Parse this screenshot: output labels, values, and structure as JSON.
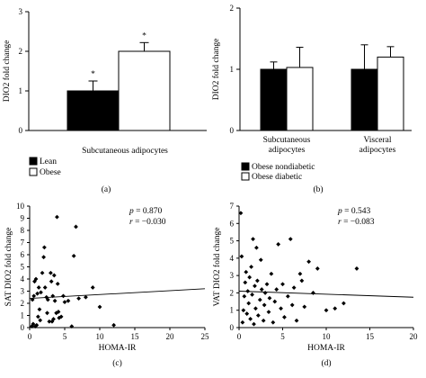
{
  "chart_data": [
    {
      "panel": "(a)",
      "type": "bar",
      "ylabel": "DIO2 fold change",
      "xlabel": "Subcutaneous adipocytes",
      "ylim": [
        0,
        3
      ],
      "yticks": [
        0,
        1,
        2,
        3
      ],
      "series": [
        {
          "name": "Lean",
          "color": "#000000",
          "value": 1.0,
          "error": 0.25,
          "sig": "*"
        },
        {
          "name": "Obese",
          "color": "#ffffff",
          "value": 2.0,
          "error": 0.22,
          "sig": "*"
        }
      ],
      "legend_placement": "bottom-left"
    },
    {
      "panel": "(b)",
      "type": "bar",
      "ylabel": "DIO2 fold change",
      "ylim": [
        0,
        2
      ],
      "yticks": [
        0,
        1,
        2
      ],
      "categories": [
        {
          "line1": "Subcutaneous",
          "line2": "adipocytes"
        },
        {
          "line1": "Visceral",
          "line2": "adipocytes"
        }
      ],
      "series": [
        {
          "name": "Obese nondiabetic",
          "color": "#000000",
          "values": [
            1.0,
            1.0
          ],
          "errors": [
            0.12,
            0.4
          ]
        },
        {
          "name": "Obese diabetic",
          "color": "#ffffff",
          "values": [
            1.03,
            1.2
          ],
          "errors": [
            0.33,
            0.17
          ]
        }
      ],
      "legend_placement": "bottom-left"
    },
    {
      "panel": "(c)",
      "type": "scatter",
      "xlabel": "HOMA-IR",
      "ylabel": "SAT DIO2 fold change",
      "xlim": [
        0,
        25
      ],
      "ylim": [
        0,
        10
      ],
      "xticks": [
        0,
        5,
        10,
        15,
        20,
        25
      ],
      "yticks": [
        0,
        1,
        2,
        3,
        4,
        5,
        6,
        7,
        8,
        9,
        10
      ],
      "p_label": "p",
      "p_value": "= 0.870",
      "r_label": "r",
      "r_value": "= −0.030",
      "trend": {
        "x": [
          0,
          25
        ],
        "y": [
          2.4,
          3.2
        ]
      },
      "points": [
        [
          0.3,
          0.1
        ],
        [
          0.5,
          0.3
        ],
        [
          0.8,
          0.1
        ],
        [
          1.0,
          0.2
        ],
        [
          1.2,
          0.9
        ],
        [
          1.5,
          0.6
        ],
        [
          0.4,
          2.3
        ],
        [
          0.6,
          2.6
        ],
        [
          0.7,
          3.8
        ],
        [
          0.9,
          4.0
        ],
        [
          1.1,
          2.8
        ],
        [
          1.3,
          3.3
        ],
        [
          1.4,
          1.5
        ],
        [
          1.6,
          2.9
        ],
        [
          1.8,
          4.5
        ],
        [
          2.0,
          5.8
        ],
        [
          2.1,
          6.6
        ],
        [
          2.2,
          3.3
        ],
        [
          2.4,
          2.5
        ],
        [
          2.5,
          1.2
        ],
        [
          2.6,
          2.3
        ],
        [
          2.8,
          0.5
        ],
        [
          3.0,
          4.5
        ],
        [
          3.1,
          3.8
        ],
        [
          3.2,
          0.5
        ],
        [
          3.3,
          2.6
        ],
        [
          3.4,
          0.7
        ],
        [
          3.5,
          4.3
        ],
        [
          3.6,
          2.2
        ],
        [
          3.8,
          1.2
        ],
        [
          3.9,
          9.1
        ],
        [
          4.0,
          3.6
        ],
        [
          4.1,
          1.3
        ],
        [
          4.2,
          0.8
        ],
        [
          4.5,
          0.9
        ],
        [
          4.8,
          2.6
        ],
        [
          5.0,
          2.1
        ],
        [
          5.5,
          2.2
        ],
        [
          6.0,
          0.1
        ],
        [
          6.3,
          5.9
        ],
        [
          6.6,
          8.3
        ],
        [
          7.0,
          2.4
        ],
        [
          8.0,
          2.5
        ],
        [
          9.0,
          3.3
        ],
        [
          10.0,
          1.7
        ],
        [
          12.0,
          0.2
        ]
      ]
    },
    {
      "panel": "(d)",
      "type": "scatter",
      "xlabel": "HOMA-IR",
      "ylabel": "VAT DIO2 fold change",
      "xlim": [
        0,
        20
      ],
      "ylim": [
        0,
        7
      ],
      "xticks": [
        0,
        5,
        10,
        15,
        20
      ],
      "yticks": [
        0,
        1,
        2,
        3,
        4,
        5,
        6,
        7
      ],
      "p_label": "p",
      "p_value": "= 0.543",
      "r_label": "r",
      "r_value": "= −0.083",
      "trend": {
        "x": [
          0,
          20
        ],
        "y": [
          2.1,
          1.75
        ]
      },
      "points": [
        [
          0.2,
          6.6
        ],
        [
          0.3,
          4.1
        ],
        [
          0.4,
          0.3
        ],
        [
          0.5,
          1.0
        ],
        [
          0.6,
          1.8
        ],
        [
          0.7,
          2.6
        ],
        [
          0.8,
          3.2
        ],
        [
          0.9,
          0.8
        ],
        [
          1.0,
          2.1
        ],
        [
          1.1,
          1.4
        ],
        [
          1.2,
          2.9
        ],
        [
          1.3,
          0.5
        ],
        [
          1.4,
          3.5
        ],
        [
          1.5,
          1.9
        ],
        [
          1.6,
          5.1
        ],
        [
          1.7,
          0.2
        ],
        [
          1.8,
          2.4
        ],
        [
          1.9,
          1.1
        ],
        [
          2.0,
          4.6
        ],
        [
          2.1,
          2.7
        ],
        [
          2.2,
          0.7
        ],
        [
          2.4,
          1.6
        ],
        [
          2.5,
          3.9
        ],
        [
          2.6,
          2.2
        ],
        [
          2.8,
          0.4
        ],
        [
          2.9,
          1.3
        ],
        [
          3.0,
          2.0
        ],
        [
          3.2,
          2.5
        ],
        [
          3.4,
          0.9
        ],
        [
          3.5,
          1.7
        ],
        [
          3.7,
          3.1
        ],
        [
          3.9,
          0.3
        ],
        [
          4.1,
          1.5
        ],
        [
          4.3,
          2.2
        ],
        [
          4.5,
          4.8
        ],
        [
          4.8,
          1.1
        ],
        [
          5.0,
          2.5
        ],
        [
          5.2,
          0.6
        ],
        [
          5.6,
          1.8
        ],
        [
          5.9,
          5.1
        ],
        [
          6.1,
          1.3
        ],
        [
          6.3,
          2.3
        ],
        [
          6.6,
          0.4
        ],
        [
          7.0,
          3.1
        ],
        [
          7.2,
          2.7
        ],
        [
          7.5,
          1.2
        ],
        [
          8.0,
          3.8
        ],
        [
          8.5,
          2.0
        ],
        [
          9.0,
          3.4
        ],
        [
          10.0,
          1.0
        ],
        [
          11.0,
          1.1
        ],
        [
          12.0,
          1.4
        ],
        [
          13.5,
          3.4
        ]
      ]
    }
  ]
}
